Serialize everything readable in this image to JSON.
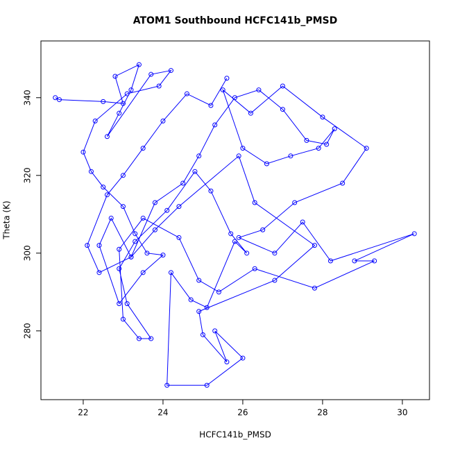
{
  "chart_data": {
    "type": "line",
    "title": "ATOM1 Southbound HCFC141b_PMSD",
    "x_label": "HCFC141b_PMSD",
    "y_label": "Theta (K)",
    "color": "#0000ff",
    "markers": true,
    "grid": false,
    "xlim": [
      20.94,
      30.68
    ],
    "ylim": [
      262.3,
      354.6
    ],
    "xticks": [
      22,
      24,
      26,
      28,
      30
    ],
    "yticks": [
      280,
      300,
      320,
      340
    ],
    "x": [
      21.3,
      21.4,
      22.5,
      23.0,
      22.8,
      23.4,
      23.2,
      22.9,
      22.6,
      23.7,
      24.2,
      23.9,
      23.1,
      22.3,
      22.0,
      22.2,
      22.5,
      23.0,
      23.3,
      23.6,
      24.0,
      23.5,
      22.9,
      22.4,
      22.7,
      23.2,
      23.8,
      24.5,
      24.9,
      25.3,
      25.8,
      26.4,
      27.0,
      27.6,
      28.1,
      28.3,
      27.9,
      27.2,
      26.6,
      26.0,
      25.5,
      26.2,
      27.0,
      28.0,
      29.1,
      28.5,
      27.3,
      26.5,
      25.9,
      26.8,
      27.5,
      28.2,
      30.3,
      28.8,
      29.3,
      27.8,
      26.3,
      25.4,
      24.9,
      24.4,
      23.5,
      22.9,
      23.0,
      23.4,
      23.7,
      23.1,
      22.9,
      23.3,
      24.1,
      24.8,
      25.2,
      25.7,
      26.1,
      25.8,
      25.1,
      24.7,
      24.2,
      24.1,
      25.1,
      26.0,
      25.3,
      25.6,
      25.0,
      24.9,
      26.8,
      27.8,
      26.3,
      25.9,
      24.4,
      23.8,
      23.2,
      22.4,
      22.1,
      22.6,
      23.0,
      23.5,
      24.0,
      24.6,
      25.2,
      25.6
    ],
    "y": [
      340,
      339.5,
      339,
      338.5,
      345.5,
      348.5,
      342,
      336,
      330,
      346,
      347,
      343,
      341,
      334,
      326,
      321,
      317,
      312,
      305,
      300,
      299.5,
      295,
      287,
      302,
      309,
      299,
      313,
      318,
      325,
      333,
      340,
      342,
      337,
      329,
      328,
      332,
      327,
      325,
      323,
      327,
      342,
      336,
      343,
      335,
      327,
      318,
      313,
      306,
      304,
      300,
      308,
      298,
      305,
      298,
      298,
      291,
      296,
      290,
      293,
      304,
      309,
      301,
      283,
      278,
      278,
      287,
      296,
      303,
      311,
      321,
      316,
      305,
      300,
      303,
      286,
      288,
      295,
      266,
      266,
      273,
      280,
      272,
      279,
      285,
      293,
      302,
      313,
      325,
      312,
      306,
      299,
      295,
      302,
      315,
      320,
      327,
      334,
      341,
      338,
      345
    ]
  }
}
